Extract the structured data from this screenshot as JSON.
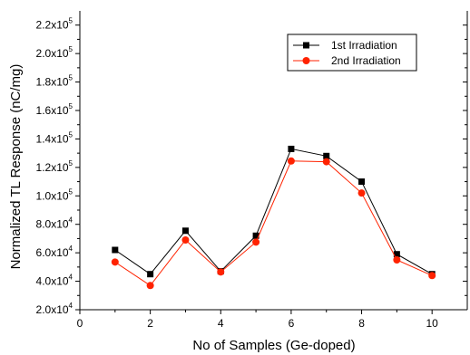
{
  "chart_data": {
    "type": "line",
    "xlabel": "No of Samples (Ge-doped)",
    "ylabel": "Normalized TL Response (nC/mg)",
    "xlim": [
      0,
      11
    ],
    "ylim": [
      20000,
      230000
    ],
    "x_ticks": [
      0,
      2,
      4,
      6,
      8,
      10
    ],
    "x_tick_labels": [
      "0",
      "2",
      "4",
      "6",
      "8",
      "10"
    ],
    "y_ticks": [
      20000,
      40000,
      60000,
      80000,
      100000,
      120000,
      140000,
      160000,
      180000,
      200000,
      220000
    ],
    "y_tick_labels": [
      {
        "mant": "2.0x10",
        "exp": "4"
      },
      {
        "mant": "4.0x10",
        "exp": "4"
      },
      {
        "mant": "6.0x10",
        "exp": "4"
      },
      {
        "mant": "8.0x10",
        "exp": "4"
      },
      {
        "mant": "1.0x10",
        "exp": "5"
      },
      {
        "mant": "1.2x10",
        "exp": "5"
      },
      {
        "mant": "1.4x10",
        "exp": "5"
      },
      {
        "mant": "1.6x10",
        "exp": "5"
      },
      {
        "mant": "1.8x10",
        "exp": "5"
      },
      {
        "mant": "2.0x10",
        "exp": "5"
      },
      {
        "mant": "2.2x10",
        "exp": "5"
      }
    ],
    "legend_position": "top-right",
    "x": [
      1,
      2,
      3,
      4,
      5,
      6,
      7,
      8,
      9,
      10
    ],
    "series": [
      {
        "name": "1st Irradiation",
        "marker": "square",
        "color": "#000000",
        "values": [
          62000,
          45000,
          75500,
          47000,
          72000,
          133000,
          128000,
          110000,
          59000,
          45000
        ]
      },
      {
        "name": "2nd Irradiation",
        "marker": "circle",
        "color": "#ff2200",
        "values": [
          53500,
          37000,
          69000,
          46500,
          67500,
          124500,
          124000,
          102000,
          55000,
          44000
        ]
      }
    ]
  }
}
